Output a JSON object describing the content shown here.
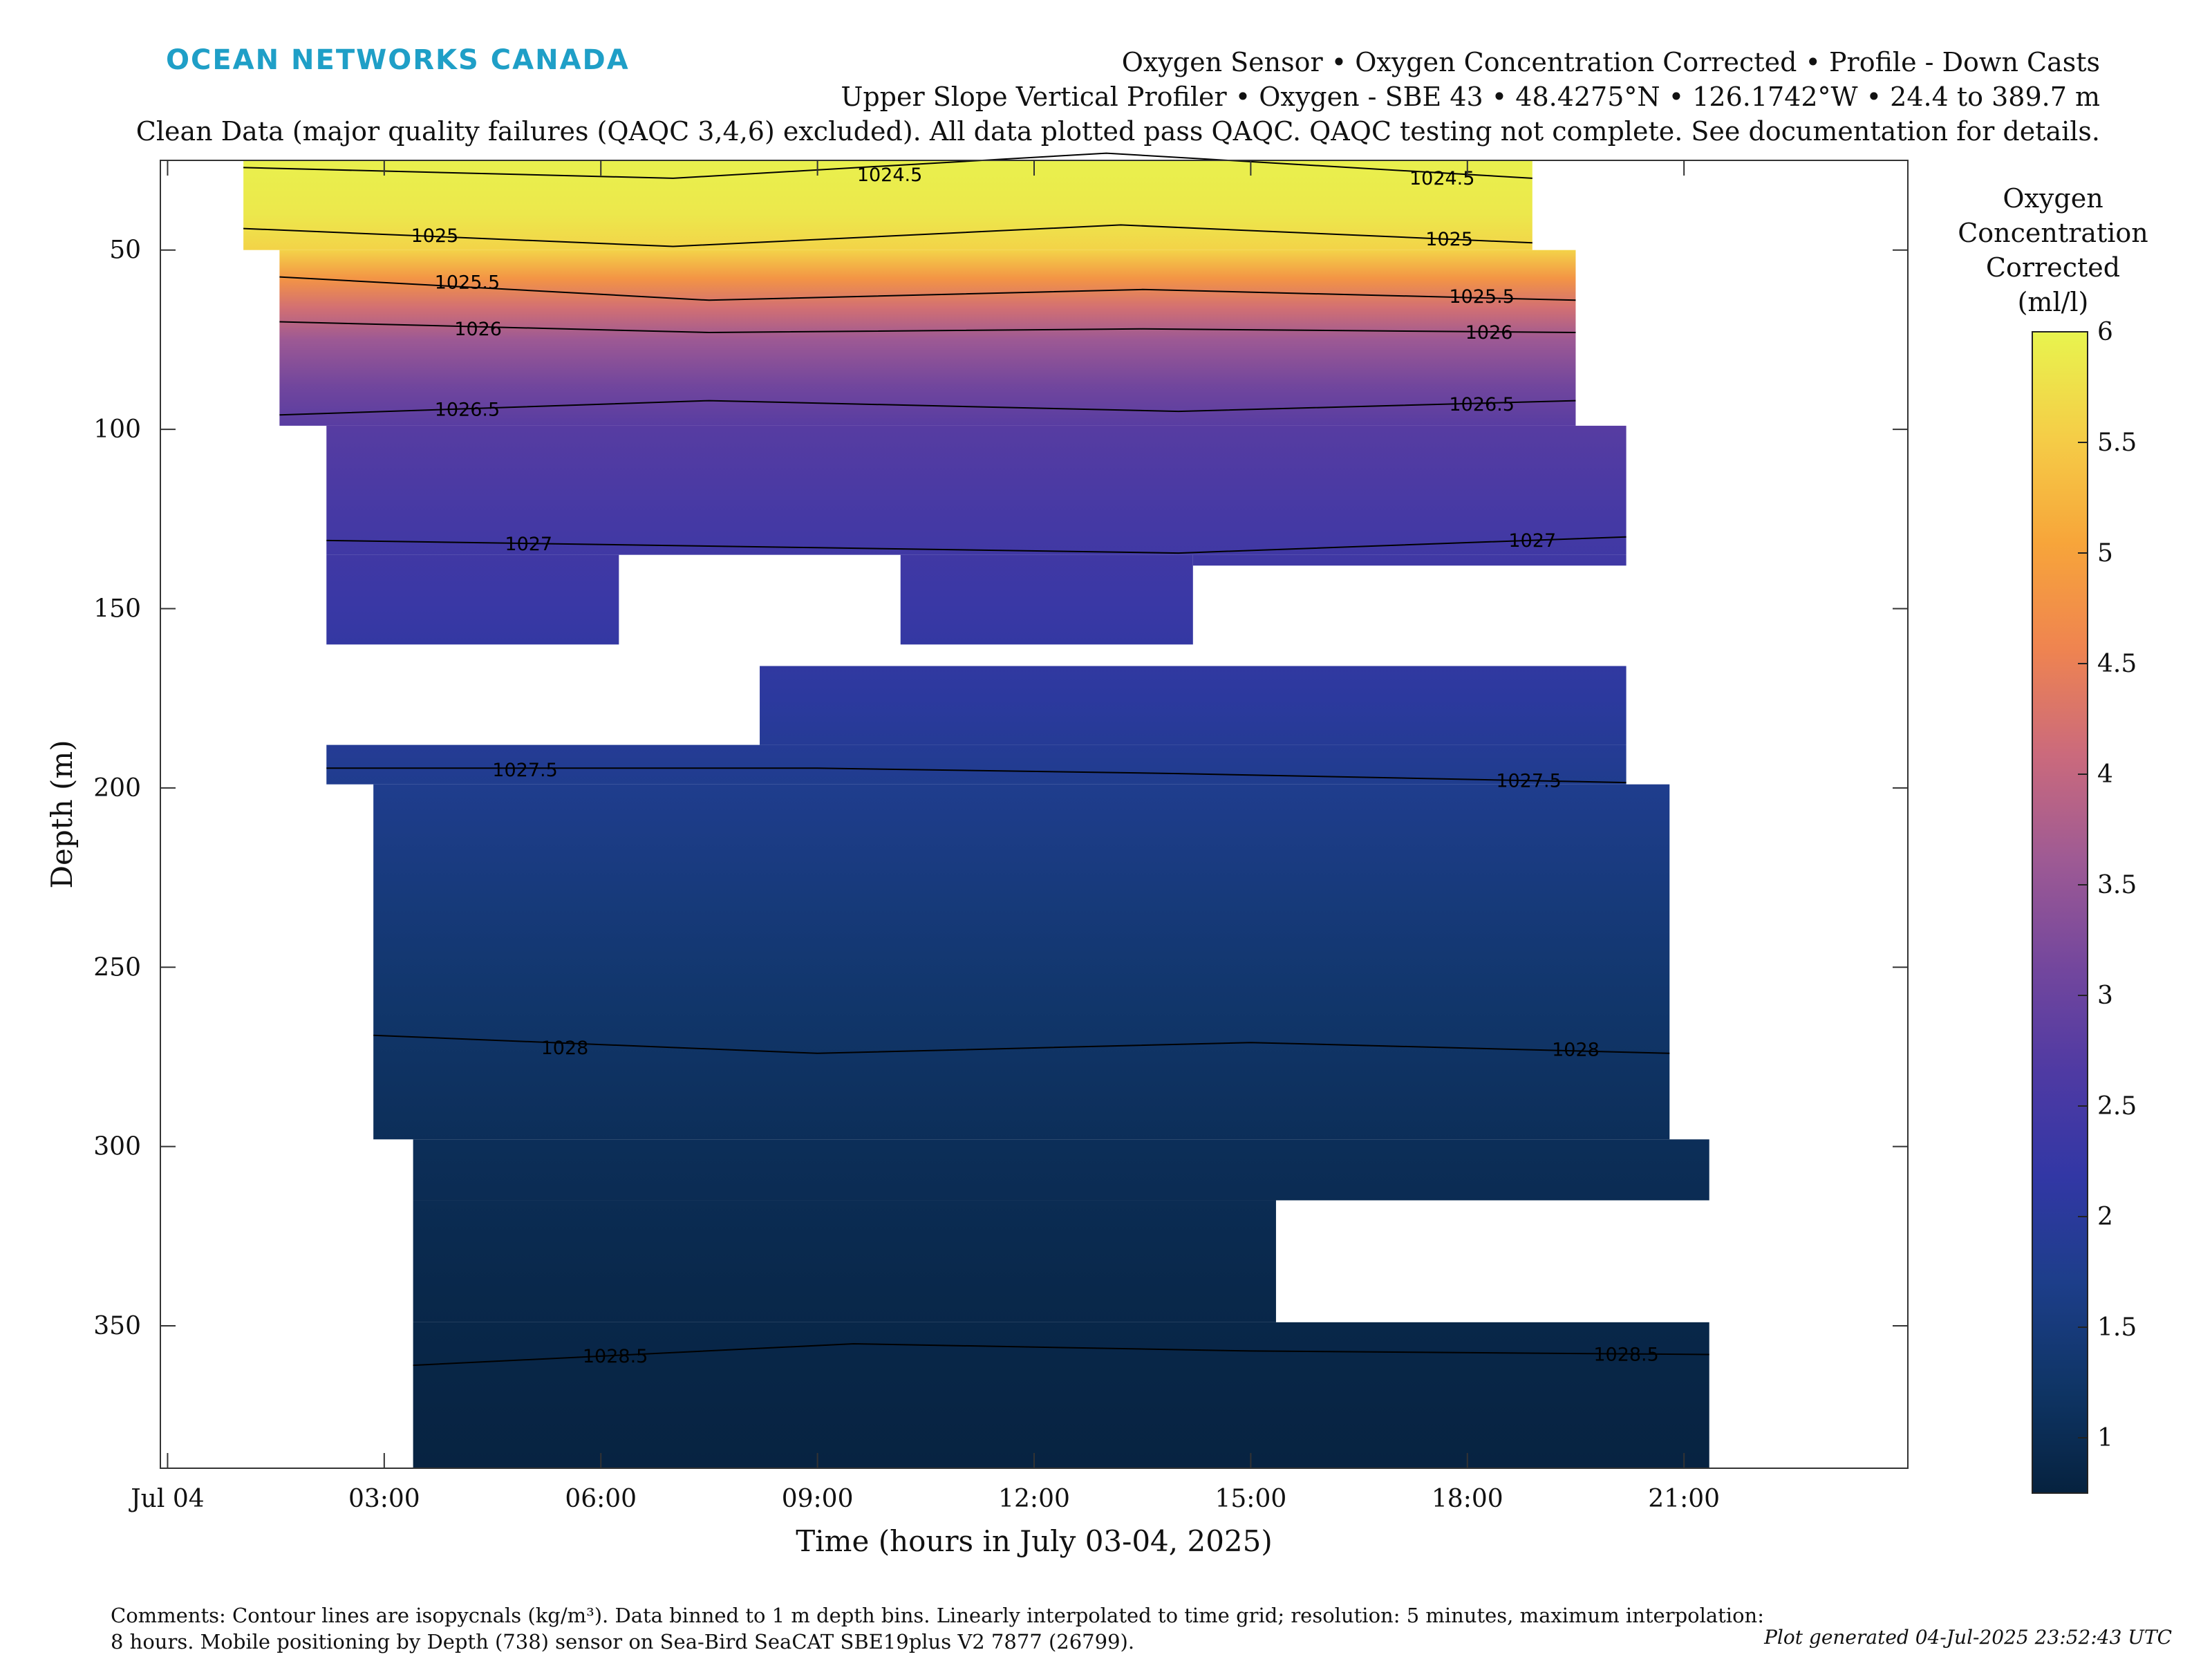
{
  "logo_text": "OCEAN NETWORKS CANADA",
  "header": {
    "line1": "Oxygen Sensor • Oxygen Concentration Corrected • Profile - Down Casts",
    "line2": "Upper Slope Vertical Profiler • Oxygen - SBE 43 • 48.4275°N • 126.1742°W • 24.4 to 389.7 m",
    "line3": "Clean Data (major quality failures (QAQC 3,4,6) excluded). All data plotted pass QAQC. QAQC testing not complete. See documentation for details."
  },
  "colorbar_title": [
    "Oxygen",
    "Concentration",
    "Corrected",
    "(ml/l)"
  ],
  "footer": {
    "comments_line1": "Comments: Contour lines are isopycnals (kg/m³). Data binned to 1 m depth bins. Linearly interpolated to time grid; resolution: 5 minutes, maximum interpolation:",
    "comments_line2": "8 hours. Mobile positioning by Depth (738) sensor on Sea-Bird SeaCAT SBE19plus V2 7877 (26799).",
    "generated": "Plot generated 04-Jul-2025 23:52:43 UTC"
  },
  "chart_data": {
    "type": "heatmap",
    "xlabel": "Time (hours in July 03-04, 2025)",
    "ylabel": "Depth (m)",
    "x_unit": "hours",
    "xlim": [
      -0.1,
      24.1
    ],
    "ylim": [
      25,
      389.7
    ],
    "y_reversed": true,
    "x_ticks": [
      {
        "value": 0,
        "label": "Jul 04"
      },
      {
        "value": 3,
        "label": "03:00"
      },
      {
        "value": 6,
        "label": "06:00"
      },
      {
        "value": 9,
        "label": "09:00"
      },
      {
        "value": 12,
        "label": "12:00"
      },
      {
        "value": 15,
        "label": "15:00"
      },
      {
        "value": 18,
        "label": "18:00"
      },
      {
        "value": 21,
        "label": "21:00"
      }
    ],
    "y_ticks": [
      50,
      100,
      150,
      200,
      250,
      300,
      350
    ],
    "colorbar": {
      "min": 0.75,
      "max": 6,
      "ticks": [
        1,
        1.5,
        2,
        2.5,
        3,
        3.5,
        4,
        4.5,
        5,
        5.5,
        6
      ],
      "colormap": [
        "#06223f",
        "#0f3566",
        "#1d3e8a",
        "#3237a5",
        "#4f3aa3",
        "#74479d",
        "#9e5a94",
        "#cb6a7c",
        "#ef8450",
        "#f7a53a",
        "#f5cd47",
        "#e8f44e"
      ]
    },
    "oxygen_profile": [
      {
        "depth": 25,
        "value": 5.95
      },
      {
        "depth": 40,
        "value": 5.85
      },
      {
        "depth": 50,
        "value": 5.6
      },
      {
        "depth": 58,
        "value": 4.8
      },
      {
        "depth": 66,
        "value": 4.2
      },
      {
        "depth": 75,
        "value": 3.6
      },
      {
        "depth": 88,
        "value": 3.1
      },
      {
        "depth": 100,
        "value": 2.75
      },
      {
        "depth": 125,
        "value": 2.5
      },
      {
        "depth": 150,
        "value": 2.3
      },
      {
        "depth": 175,
        "value": 2.05
      },
      {
        "depth": 200,
        "value": 1.75
      },
      {
        "depth": 230,
        "value": 1.5
      },
      {
        "depth": 260,
        "value": 1.3
      },
      {
        "depth": 300,
        "value": 1.05
      },
      {
        "depth": 340,
        "value": 0.9
      },
      {
        "depth": 390,
        "value": 0.78
      }
    ],
    "data_regions": [
      {
        "t0": 1.05,
        "t1": 18.9,
        "d0": 25,
        "d1": 50
      },
      {
        "t0": 1.55,
        "t1": 19.5,
        "d0": 50,
        "d1": 99
      },
      {
        "t0": 2.2,
        "t1": 20.2,
        "d0": 99,
        "d1": 135
      },
      {
        "t0": 2.2,
        "t1": 6.25,
        "d0": 135,
        "d1": 160
      },
      {
        "t0": 10.15,
        "t1": 14.2,
        "d0": 135,
        "d1": 160
      },
      {
        "t0": 14.2,
        "t1": 20.2,
        "d0": 135,
        "d1": 138
      },
      {
        "t0": 8.2,
        "t1": 20.2,
        "d0": 166,
        "d1": 188
      },
      {
        "t0": 2.2,
        "t1": 20.2,
        "d0": 188,
        "d1": 199
      },
      {
        "t0": 2.85,
        "t1": 20.8,
        "d0": 199,
        "d1": 298
      },
      {
        "t0": 3.4,
        "t1": 21.35,
        "d0": 298,
        "d1": 315
      },
      {
        "t0": 3.4,
        "t1": 15.35,
        "d0": 315,
        "d1": 349
      },
      {
        "t0": 3.4,
        "t1": 21.35,
        "d0": 349,
        "d1": 389.7
      }
    ],
    "isopycnals": [
      {
        "label": "1024.5",
        "points": [
          [
            1.05,
            27
          ],
          [
            7,
            30
          ],
          [
            13,
            23
          ],
          [
            18.9,
            30
          ]
        ],
        "label_points": [
          [
            10,
            29
          ],
          [
            17.65,
            30
          ]
        ]
      },
      {
        "label": "1025",
        "points": [
          [
            1.05,
            44
          ],
          [
            7,
            49
          ],
          [
            13.2,
            43
          ],
          [
            18.9,
            48
          ]
        ],
        "label_points": [
          [
            3.7,
            46
          ],
          [
            17.75,
            47
          ]
        ]
      },
      {
        "label": "1025.5",
        "points": [
          [
            1.55,
            57.5
          ],
          [
            7.5,
            64
          ],
          [
            13.5,
            61
          ],
          [
            19.5,
            64
          ]
        ],
        "label_points": [
          [
            4.15,
            59
          ],
          [
            18.2,
            63
          ]
        ]
      },
      {
        "label": "1026",
        "points": [
          [
            1.55,
            70
          ],
          [
            7.5,
            73
          ],
          [
            13.5,
            72
          ],
          [
            19.5,
            73
          ]
        ],
        "label_points": [
          [
            4.3,
            72
          ],
          [
            18.3,
            73
          ]
        ]
      },
      {
        "label": "1026.5",
        "points": [
          [
            1.55,
            96
          ],
          [
            7.5,
            92
          ],
          [
            14,
            95
          ],
          [
            19.5,
            92
          ]
        ],
        "label_points": [
          [
            4.15,
            94.5
          ],
          [
            18.2,
            93
          ]
        ]
      },
      {
        "label": "1027",
        "points": [
          [
            2.2,
            131
          ],
          [
            9,
            133
          ],
          [
            14,
            134.5
          ],
          [
            20.2,
            130
          ]
        ],
        "label_points": [
          [
            5,
            132
          ],
          [
            18.9,
            131
          ]
        ]
      },
      {
        "label": "1027.5",
        "points": [
          [
            2.2,
            194.5
          ],
          [
            9,
            194.5
          ],
          [
            14,
            196
          ],
          [
            20.2,
            198.5
          ]
        ],
        "label_points": [
          [
            4.95,
            195
          ],
          [
            18.85,
            198
          ]
        ]
      },
      {
        "label": "1028",
        "points": [
          [
            2.85,
            269
          ],
          [
            9,
            274
          ],
          [
            15,
            271
          ],
          [
            20.8,
            274
          ]
        ],
        "label_points": [
          [
            5.5,
            272.5
          ],
          [
            19.5,
            273
          ]
        ]
      },
      {
        "label": "1028.5",
        "points": [
          [
            3.4,
            361
          ],
          [
            9.5,
            355
          ],
          [
            15,
            357
          ],
          [
            21.35,
            358
          ]
        ],
        "label_points": [
          [
            6.2,
            358.5
          ],
          [
            20.2,
            358
          ]
        ]
      }
    ]
  }
}
